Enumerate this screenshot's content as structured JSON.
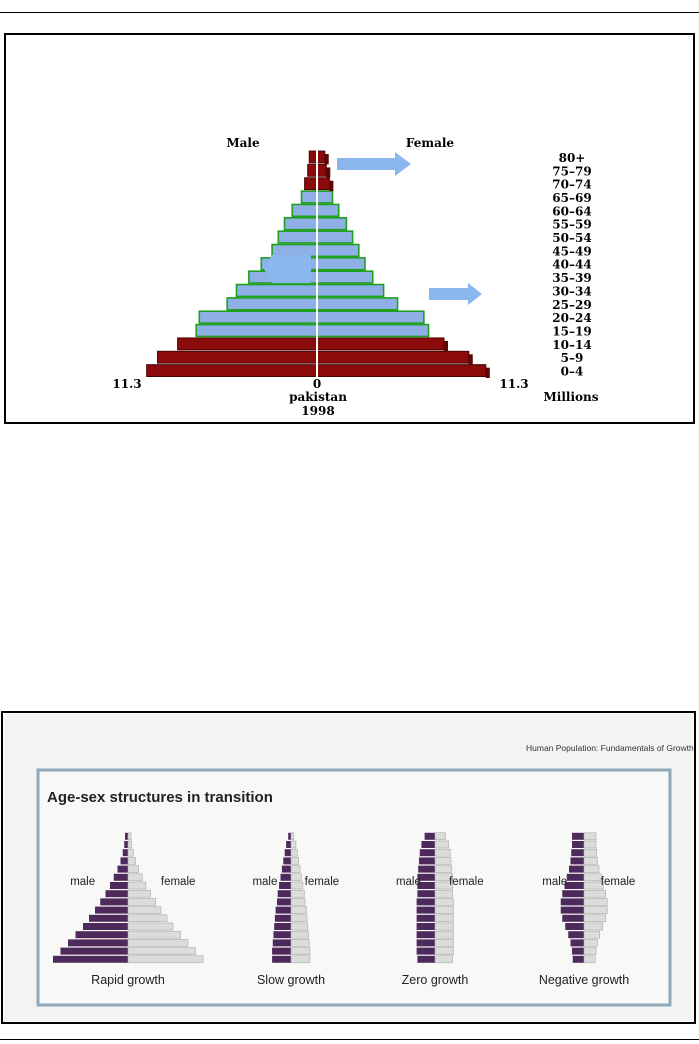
{
  "chart_data": [
    {
      "type": "bar",
      "subtype": "population-pyramid",
      "title": "pakistan",
      "subtitle": "1998",
      "left_label": "Male",
      "right_label": "Female",
      "unit": "Millions",
      "xlim": [
        -11.3,
        11.3
      ],
      "x_ticks": [
        "11.3",
        "0",
        "11.3"
      ],
      "categories": [
        "0–4",
        "5–9",
        "10–14",
        "15–19",
        "20–24",
        "25–29",
        "30–34",
        "35–39",
        "40–44",
        "45–49",
        "50–54",
        "55–59",
        "60–64",
        "65–69",
        "70–74",
        "75–79",
        "80+"
      ],
      "series": [
        {
          "name": "Male",
          "values": [
            11.0,
            10.3,
            9.0,
            7.8,
            7.6,
            5.8,
            5.2,
            4.4,
            3.6,
            2.9,
            2.5,
            2.1,
            1.6,
            1.0,
            0.8,
            0.6,
            0.5
          ]
        },
        {
          "name": "Female",
          "values": [
            10.9,
            9.8,
            8.2,
            7.2,
            6.9,
            5.2,
            4.3,
            3.6,
            3.1,
            2.7,
            2.3,
            1.9,
            1.4,
            1.0,
            0.8,
            0.6,
            0.5
          ]
        }
      ],
      "colors": {
        "shade": "#8b0a0a",
        "border": "#1fa01f",
        "fill": "#8fb0e6",
        "arrow": "#8ab8ee"
      }
    },
    {
      "type": "bar",
      "subtype": "population-pyramid-set",
      "header": "Human Population: Fundamentals of Growth and Change",
      "title": "Age-sex structures in transition",
      "left_label": "male",
      "right_label": "female",
      "panels": [
        {
          "name": "Rapid growth",
          "values": [
            10,
            9,
            8,
            7,
            6,
            5.2,
            4.4,
            3.7,
            3,
            2.4,
            1.9,
            1.4,
            1,
            0.7,
            0.5,
            0.4
          ]
        },
        {
          "name": "Slow growth",
          "values": [
            2.7,
            2.7,
            2.6,
            2.5,
            2.4,
            2.3,
            2.2,
            2.0,
            1.9,
            1.7,
            1.5,
            1.3,
            1.1,
            0.9,
            0.7,
            0.4
          ]
        },
        {
          "name": "Zero growth",
          "values": [
            2.2,
            2.3,
            2.3,
            2.3,
            2.3,
            2.3,
            2.3,
            2.3,
            2.2,
            2.2,
            2.2,
            2.1,
            2.0,
            1.9,
            1.7,
            1.3
          ]
        },
        {
          "name": "Negative growth",
          "values": [
            1.5,
            1.6,
            1.8,
            2.1,
            2.5,
            2.9,
            3.1,
            3.1,
            2.9,
            2.6,
            2.3,
            2.0,
            1.8,
            1.7,
            1.6,
            1.6
          ]
        }
      ],
      "colors": {
        "male": "#4e2a5c",
        "female": "#dcdcdc",
        "frame": "#8fa9bb"
      }
    }
  ]
}
